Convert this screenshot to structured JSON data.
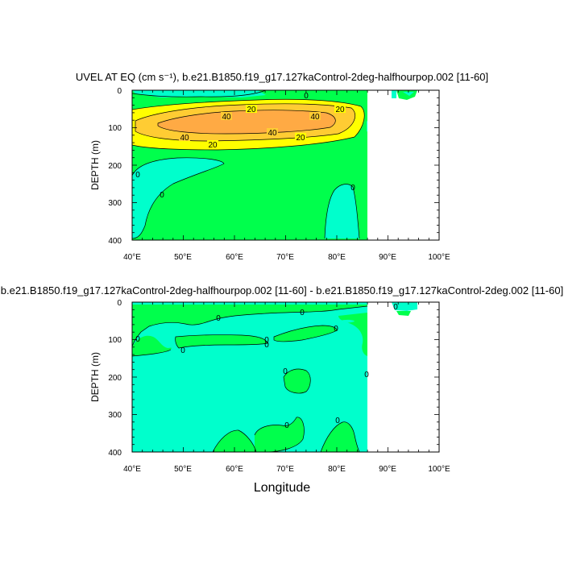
{
  "chart_data": [
    {
      "type": "contour",
      "title": "UVEL AT EQ (cm s⁻¹), b.e21.B1850.f19_g17.127kaControl-2deg-halfhourpop.002 [11-60]",
      "ylabel": "DEPTH (m)",
      "xlim": [
        40,
        100
      ],
      "ylim": [
        0,
        400
      ],
      "y_inverted": true,
      "x_ticks": [
        "40°E",
        "50°E",
        "60°E",
        "70°E",
        "80°E",
        "90°E",
        "100°E"
      ],
      "y_ticks": [
        "0",
        "100",
        "200",
        "300",
        "400"
      ],
      "contour_levels": [
        0,
        20,
        40,
        50
      ],
      "colors": {
        "negative": "#00FFCC",
        "level_0_20": "#00FF4C",
        "level_20_30": "#FFFF00",
        "level_30_40": "#FFCC33",
        "level_40_50": "#FFAA44"
      },
      "contour_labels": [
        "0",
        "0",
        "0",
        "0",
        "20",
        "20",
        "20",
        "20",
        "40",
        "40",
        "40",
        "40"
      ],
      "land_from_lon": 88
    },
    {
      "type": "contour",
      "title": "b.e21.B1850.f19_g17.127kaControl-2deg-halfhourpop.002 [11-60] - b.e21.B1850.f19_g17.127kaControl-2deg.002 [11-60]",
      "ylabel": "DEPTH (m)",
      "xlabel": "Longitude",
      "xlim": [
        40,
        100
      ],
      "ylim": [
        0,
        400
      ],
      "y_inverted": true,
      "x_ticks": [
        "40°E",
        "50°E",
        "60°E",
        "70°E",
        "80°E",
        "90°E",
        "100°E"
      ],
      "y_ticks": [
        "0",
        "100",
        "200",
        "300",
        "400"
      ],
      "contour_levels": [
        0
      ],
      "colors": {
        "negative": "#00FFCC",
        "positive": "#00FF4C"
      },
      "contour_labels": [
        "0",
        "0",
        "0",
        "0",
        "0",
        "0",
        "0",
        "0",
        "0",
        "0",
        "0",
        "0",
        "0",
        "0"
      ],
      "land_from_lon": 88
    }
  ]
}
